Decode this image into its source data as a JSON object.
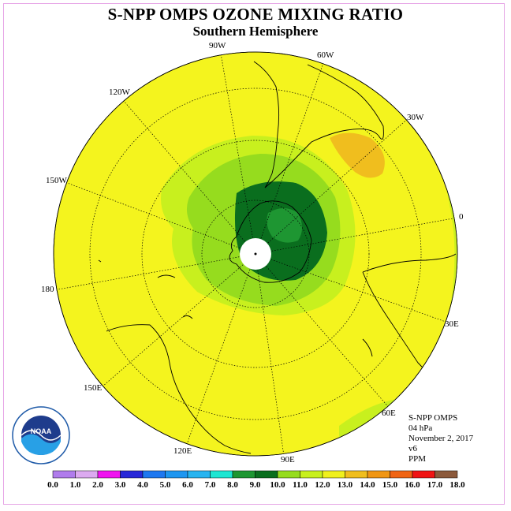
{
  "title": "S-NPP OMPS OZONE MIXING RATIO",
  "subtitle": "Southern Hemisphere",
  "logo_text": "NOAA",
  "logo_ring_text": "NATIONAL OCEANIC AND ATMOSPHERIC ADMINISTRATION · U.S. DEPARTMENT OF COMMERCE",
  "longitude_labels": {
    "l90w": "90W",
    "l60w": "60W",
    "l30w": "30W",
    "l0": "0",
    "l120w": "120W",
    "l150w": "150W",
    "l180": "180",
    "l30e": "30E",
    "l60e": "60E",
    "l90e": "90E",
    "l120e": "120E",
    "l150e": "150E"
  },
  "info": {
    "instrument": "S-NPP OMPS",
    "level": "04 hPa",
    "date": "November 2, 2017",
    "version": "v6",
    "units": "PPM"
  },
  "colorbar": {
    "ticks": [
      "0.0",
      "1.0",
      "2.0",
      "3.0",
      "4.0",
      "5.0",
      "6.0",
      "7.0",
      "8.0",
      "9.0",
      "10.0",
      "11.0",
      "12.0",
      "13.0",
      "14.0",
      "15.0",
      "16.0",
      "17.0",
      "18.0"
    ],
    "colors": [
      "#b07cec",
      "#dcaaf0",
      "#f014f0",
      "#2828d8",
      "#1e78f0",
      "#1e96f0",
      "#28b4f0",
      "#1ee6d2",
      "#1e9632",
      "#0a6e1e",
      "#96dc1e",
      "#c8f01e",
      "#f0f01e",
      "#f0be1e",
      "#f09614",
      "#f06414",
      "#f01414",
      "#8c5a3c"
    ]
  },
  "colors": {
    "background_value": "#f0f01e",
    "ocean_fill": "#f4f41e"
  }
}
